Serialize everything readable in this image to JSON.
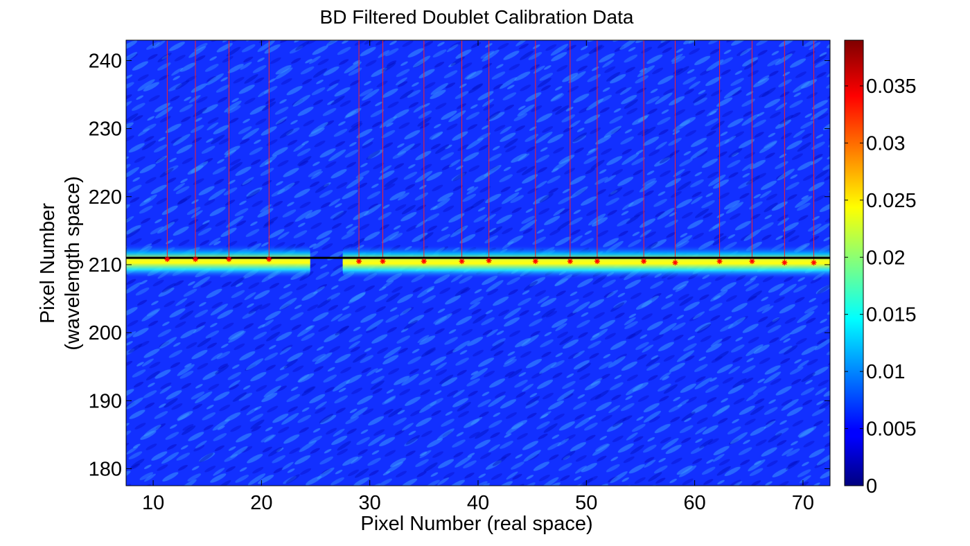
{
  "chart_data": {
    "type": "heatmap",
    "title": "BD Filtered Doublet Calibration Data",
    "xlabel": "Pixel Number (real space)",
    "ylabel_lines": [
      "Pixel Number",
      "(wavelength space)"
    ],
    "xlim": [
      7.5,
      72.5
    ],
    "ylim": [
      177.5,
      243
    ],
    "xticks": [
      10,
      20,
      30,
      40,
      50,
      60,
      70
    ],
    "yticks": [
      180,
      190,
      200,
      210,
      220,
      230,
      240
    ],
    "colorbar": {
      "colormap": "jet",
      "range": [
        0,
        0.039
      ],
      "ticks": [
        "0",
        "0.005",
        "0.01",
        "0.015",
        "0.02",
        "0.025",
        "0.03",
        "0.035"
      ],
      "tick_values": [
        0,
        0.005,
        0.01,
        0.015,
        0.02,
        0.025,
        0.03,
        0.035
      ]
    },
    "band": {
      "center_y": 210.5,
      "peak_value": 0.023,
      "background_value": 0.004,
      "gap_x": [
        24.5,
        27.5
      ]
    },
    "reference_line_y": 211,
    "markers": [
      {
        "x": 11.3,
        "y": 210.8
      },
      {
        "x": 13.9,
        "y": 210.8
      },
      {
        "x": 17.0,
        "y": 210.8
      },
      {
        "x": 20.7,
        "y": 210.8
      },
      {
        "x": 29.0,
        "y": 210.5
      },
      {
        "x": 31.2,
        "y": 210.5
      },
      {
        "x": 35.0,
        "y": 210.5
      },
      {
        "x": 38.5,
        "y": 210.5
      },
      {
        "x": 41.0,
        "y": 210.6
      },
      {
        "x": 45.3,
        "y": 210.5
      },
      {
        "x": 48.5,
        "y": 210.5
      },
      {
        "x": 51.0,
        "y": 210.5
      },
      {
        "x": 55.3,
        "y": 210.5
      },
      {
        "x": 58.2,
        "y": 210.3
      },
      {
        "x": 62.3,
        "y": 210.5
      },
      {
        "x": 65.3,
        "y": 210.5
      },
      {
        "x": 68.3,
        "y": 210.3
      },
      {
        "x": 71.0,
        "y": 210.3
      }
    ]
  }
}
